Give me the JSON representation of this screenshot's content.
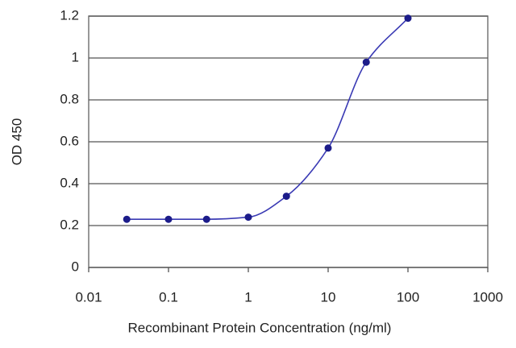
{
  "chart_data": {
    "type": "line",
    "x_label": "Recombinant Protein Concentration (ng/ml)",
    "y_label": "OD 450",
    "x": [
      0.03,
      0.1,
      0.3,
      1,
      3,
      10,
      30,
      100
    ],
    "series": [
      {
        "color": "#1c1c8a",
        "values": [
          0.23,
          0.23,
          0.23,
          0.24,
          0.34,
          0.57,
          0.98,
          1.19
        ]
      }
    ],
    "xlim": [
      0.01,
      1000
    ],
    "xticks": [
      0.01,
      0.1,
      1,
      10,
      100,
      1000
    ],
    "xscale": "log",
    "ylim": [
      0,
      1.2
    ],
    "yticks": [
      0,
      0.2,
      0.4,
      0.6,
      0.8,
      1,
      1.2
    ],
    "grid": true
  }
}
